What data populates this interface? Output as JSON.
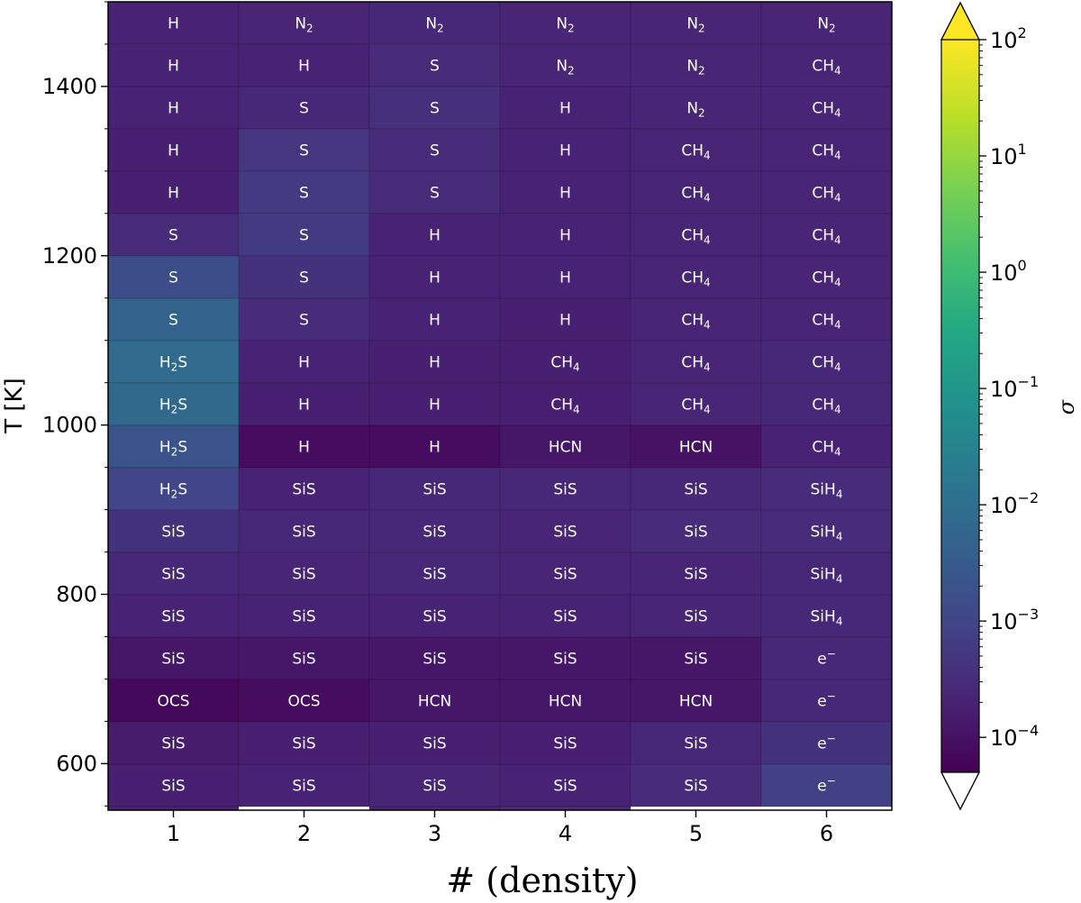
{
  "chart_data": {
    "type": "heatmap",
    "title": "",
    "xlabel": "# (density)",
    "ylabel": "T [K]",
    "x_categories": [
      1,
      2,
      3,
      4,
      5,
      6
    ],
    "x_tick_labels": [
      "1",
      "2",
      "3",
      "4",
      "5",
      "6"
    ],
    "y_values_K": [
      1500,
      1450,
      1400,
      1350,
      1300,
      1250,
      1200,
      1150,
      1100,
      1050,
      1000,
      950,
      900,
      850,
      800,
      750,
      700,
      650,
      600,
      560
    ],
    "y_ticks": [
      600,
      800,
      1000,
      1200,
      1400
    ],
    "y_tick_labels": [
      "600",
      "800",
      "1000",
      "1200",
      "1400"
    ],
    "ylim": [
      545,
      1500
    ],
    "colorbar": {
      "label": "σ",
      "scale": "log",
      "range": [
        5e-05,
        100
      ],
      "tick_values": [
        0.0001,
        0.001,
        0.01,
        0.1,
        1,
        10,
        100
      ],
      "tick_labels": [
        {
          "base": "10",
          "exp": "−4"
        },
        {
          "base": "10",
          "exp": "−3"
        },
        {
          "base": "10",
          "exp": "−2"
        },
        {
          "base": "10",
          "exp": "−1"
        },
        {
          "base": "10",
          "exp": "0"
        },
        {
          "base": "10",
          "exp": "1"
        },
        {
          "base": "10",
          "exp": "2"
        }
      ],
      "extend": "both",
      "colormap": "viridis",
      "under_color": "#ffffff",
      "over_color": "#fde725"
    },
    "labels": [
      [
        "H",
        "N_2",
        "N_2",
        "N_2",
        "N_2",
        "N_2"
      ],
      [
        "H",
        "H",
        "S",
        "N_2",
        "N_2",
        "CH_4"
      ],
      [
        "H",
        "S",
        "S",
        "H",
        "N_2",
        "CH_4"
      ],
      [
        "H",
        "S",
        "S",
        "H",
        "CH_4",
        "CH_4"
      ],
      [
        "H",
        "S",
        "S",
        "H",
        "CH_4",
        "CH_4"
      ],
      [
        "S",
        "S",
        "H",
        "H",
        "CH_4",
        "CH_4"
      ],
      [
        "S",
        "S",
        "H",
        "H",
        "CH_4",
        "CH_4"
      ],
      [
        "S",
        "S",
        "H",
        "H",
        "CH_4",
        "CH_4"
      ],
      [
        "H_2S",
        "H",
        "H",
        "CH_4",
        "CH_4",
        "CH_4"
      ],
      [
        "H_2S",
        "H",
        "H",
        "CH_4",
        "CH_4",
        "CH_4"
      ],
      [
        "H_2S",
        "H",
        "H",
        "HCN",
        "HCN",
        "CH_4"
      ],
      [
        "H_2S",
        "SiS",
        "SiS",
        "SiS",
        "SiS",
        "SiH_4"
      ],
      [
        "SiS",
        "SiS",
        "SiS",
        "SiS",
        "SiS",
        "SiH_4"
      ],
      [
        "SiS",
        "SiS",
        "SiS",
        "SiS",
        "SiS",
        "SiH_4"
      ],
      [
        "SiS",
        "SiS",
        "SiS",
        "SiS",
        "SiS",
        "SiH_4"
      ],
      [
        "SiS",
        "SiS",
        "SiS",
        "SiS",
        "SiS",
        "e^−"
      ],
      [
        "OCS",
        "OCS",
        "HCN",
        "HCN",
        "HCN",
        "e^−"
      ],
      [
        "SiS",
        "SiS",
        "SiS",
        "SiS",
        "SiS",
        "e^−"
      ],
      [
        "SiS",
        "SiS",
        "SiS",
        "SiS",
        "SiS",
        "e^−"
      ],
      [
        "",
        "",
        "",
        "",
        "",
        ""
      ]
    ],
    "sigma": [
      [
        0.0002,
        0.00022,
        0.00025,
        0.00022,
        0.00022,
        0.00022
      ],
      [
        0.0002,
        0.0002,
        0.0003,
        0.00022,
        0.00022,
        0.00022
      ],
      [
        0.0002,
        0.00025,
        0.00035,
        0.0002,
        0.00022,
        0.00022
      ],
      [
        0.00018,
        0.0005,
        0.0003,
        0.0002,
        0.00022,
        0.00022
      ],
      [
        0.00018,
        0.0006,
        0.0003,
        0.0002,
        0.00022,
        0.00022
      ],
      [
        0.0003,
        0.0006,
        0.0002,
        0.0002,
        0.00022,
        0.00022
      ],
      [
        0.0015,
        0.0004,
        0.0002,
        0.0002,
        0.00022,
        0.00022
      ],
      [
        0.005,
        0.0003,
        0.0002,
        0.00018,
        0.00022,
        0.00022
      ],
      [
        0.008,
        0.0002,
        0.00018,
        0.00018,
        0.00022,
        0.00025
      ],
      [
        0.007,
        0.00018,
        0.00018,
        0.00018,
        0.00022,
        0.00025
      ],
      [
        0.002,
        8e-05,
        8e-05,
        0.00012,
        0.0001,
        0.0002
      ],
      [
        0.001,
        0.0002,
        0.00025,
        0.00025,
        0.00025,
        0.0003
      ],
      [
        0.0004,
        0.00025,
        0.00025,
        0.00022,
        0.0003,
        0.0003
      ],
      [
        0.00025,
        0.00022,
        0.00025,
        0.00022,
        0.00022,
        0.00025
      ],
      [
        0.0002,
        0.0002,
        0.0002,
        0.0002,
        0.00022,
        0.00025
      ],
      [
        0.00012,
        0.00012,
        0.00012,
        0.00012,
        0.00012,
        0.00025
      ],
      [
        7e-05,
        8e-05,
        0.00012,
        0.00012,
        0.00012,
        0.00025
      ],
      [
        0.00015,
        0.00018,
        0.00018,
        0.00018,
        0.00025,
        0.0004
      ],
      [
        0.00018,
        0.0002,
        0.00022,
        0.0002,
        0.0003,
        0.0008
      ],
      [
        0.0002,
        null,
        0.00022,
        0.0003,
        null,
        null
      ]
    ]
  }
}
